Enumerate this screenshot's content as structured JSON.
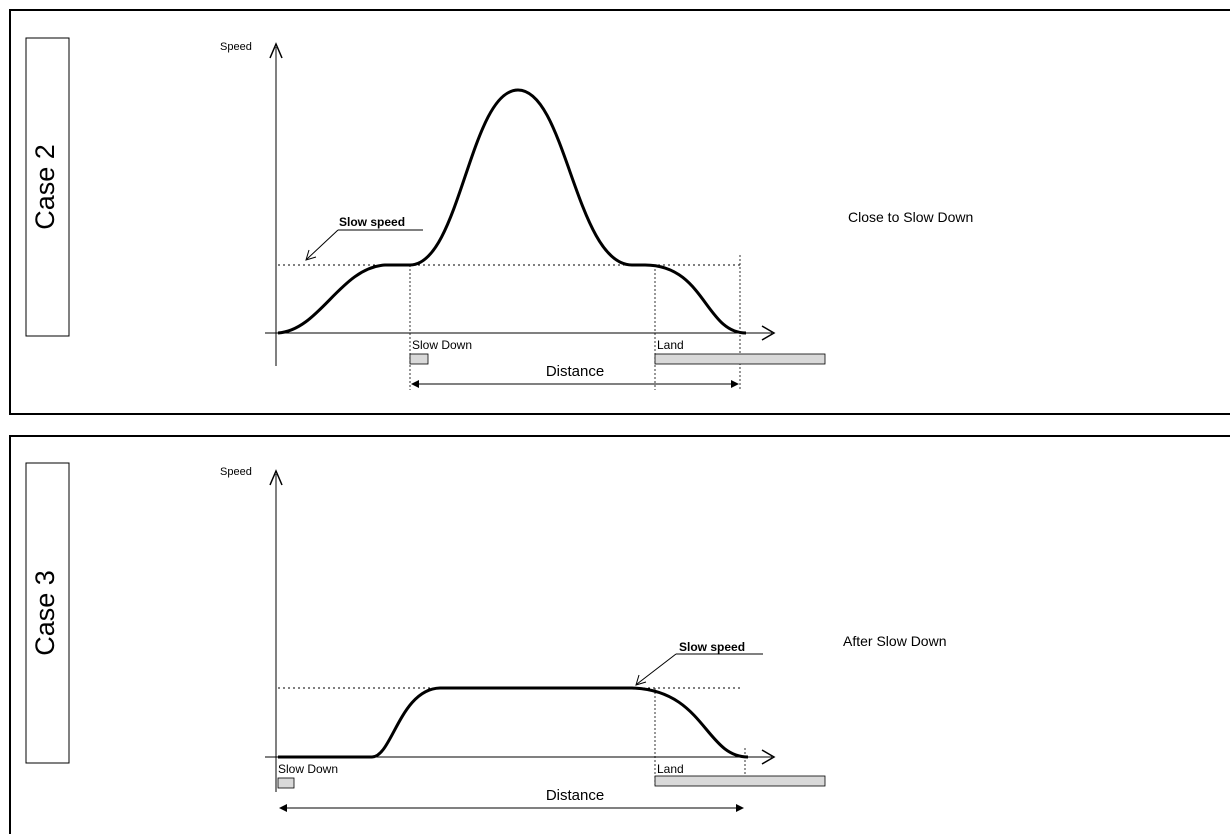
{
  "panels": [
    {
      "case_label": "Case 2",
      "y_axis_label": "Speed",
      "slow_speed_label": "Slow speed",
      "slow_down_label": "Slow Down",
      "land_label": "Land",
      "distance_label": "Distance",
      "description": "Close to Slow Down"
    },
    {
      "case_label": "Case 3",
      "y_axis_label": "Speed",
      "slow_speed_label": "Slow speed",
      "slow_down_label": "Slow Down",
      "land_label": "Land",
      "distance_label": "Distance",
      "description": "After Slow Down"
    }
  ],
  "colors": {
    "line": "#000000",
    "box_fill": "#d9d9d9"
  }
}
